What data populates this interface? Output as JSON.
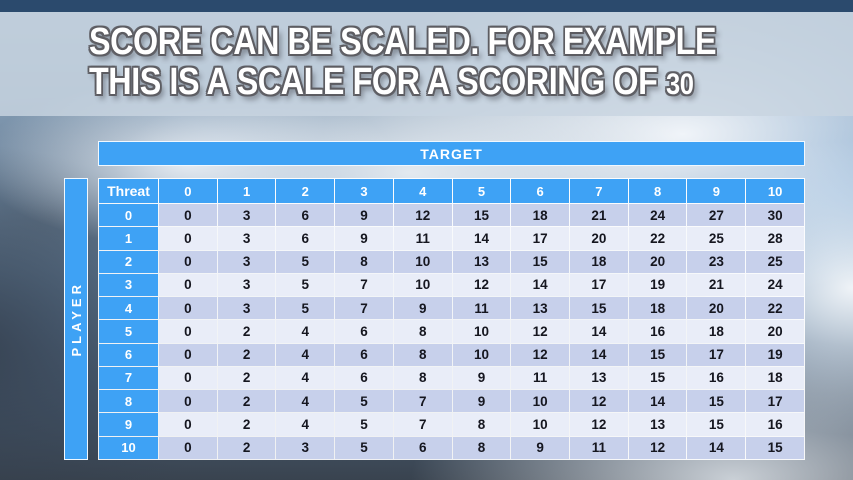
{
  "slide": {
    "title_line1": "SCORE CAN BE SCALED. FOR EXAMPLE",
    "title_line2": "THIS IS A SCALE FOR A SCORING OF",
    "title_line2_number": "30"
  },
  "table": {
    "target_label": "TARGET",
    "player_label": "PLAYER",
    "corner_label": "Threat",
    "column_headers": [
      "0",
      "1",
      "2",
      "3",
      "4",
      "5",
      "6",
      "7",
      "8",
      "9",
      "10"
    ],
    "rows": [
      {
        "threat": "0",
        "values": [
          "0",
          "3",
          "6",
          "9",
          "12",
          "15",
          "18",
          "21",
          "24",
          "27",
          "30"
        ]
      },
      {
        "threat": "1",
        "values": [
          "0",
          "3",
          "6",
          "9",
          "11",
          "14",
          "17",
          "20",
          "22",
          "25",
          "28"
        ]
      },
      {
        "threat": "2",
        "values": [
          "0",
          "3",
          "5",
          "8",
          "10",
          "13",
          "15",
          "18",
          "20",
          "23",
          "25"
        ]
      },
      {
        "threat": "3",
        "values": [
          "0",
          "3",
          "5",
          "7",
          "10",
          "12",
          "14",
          "17",
          "19",
          "21",
          "24"
        ]
      },
      {
        "threat": "4",
        "values": [
          "0",
          "3",
          "5",
          "7",
          "9",
          "11",
          "13",
          "15",
          "18",
          "20",
          "22"
        ]
      },
      {
        "threat": "5",
        "values": [
          "0",
          "2",
          "4",
          "6",
          "8",
          "10",
          "12",
          "14",
          "16",
          "18",
          "20"
        ]
      },
      {
        "threat": "6",
        "values": [
          "0",
          "2",
          "4",
          "6",
          "8",
          "10",
          "12",
          "14",
          "15",
          "17",
          "19"
        ]
      },
      {
        "threat": "7",
        "values": [
          "0",
          "2",
          "4",
          "6",
          "8",
          "9",
          "11",
          "13",
          "15",
          "16",
          "18"
        ]
      },
      {
        "threat": "8",
        "values": [
          "0",
          "2",
          "4",
          "5",
          "7",
          "9",
          "10",
          "12",
          "14",
          "15",
          "17"
        ]
      },
      {
        "threat": "9",
        "values": [
          "0",
          "2",
          "4",
          "5",
          "7",
          "8",
          "10",
          "12",
          "13",
          "15",
          "16"
        ]
      },
      {
        "threat": "10",
        "values": [
          "0",
          "2",
          "3",
          "5",
          "6",
          "8",
          "9",
          "11",
          "12",
          "14",
          "15"
        ]
      }
    ]
  },
  "colors": {
    "accent_blue": "#3EA2F5",
    "row_even": "#C7D0EB",
    "row_odd": "#E9EDF8",
    "cell_text": "#15161F",
    "top_strip": "#2B4A6D"
  }
}
